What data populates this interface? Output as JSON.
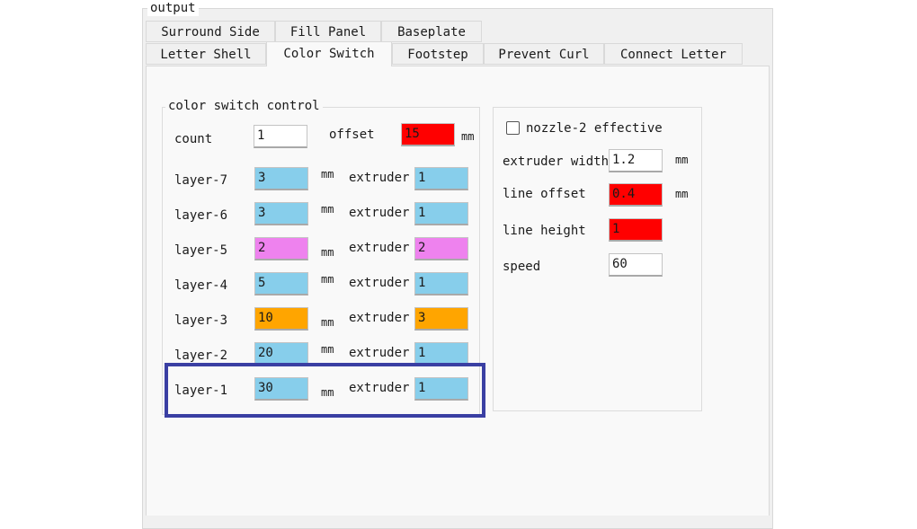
{
  "output_label": "output",
  "tabs_row1": [
    "Surround Side",
    "Fill Panel",
    "Baseplate"
  ],
  "tabs_row2": [
    "Letter Shell",
    "Color Switch",
    "Footstep",
    "Prevent Curl",
    "Connect Letter"
  ],
  "color_switch": {
    "legend": "color switch control",
    "count_label": "count",
    "count_value": "1",
    "offset_label": "offset",
    "offset_value": "15",
    "offset_unit": "mm",
    "layers": [
      {
        "label": "layer-7",
        "height": "3",
        "unit": "mm",
        "extruder_label": "extruder",
        "extruder": "1",
        "color": "#87ceeb"
      },
      {
        "label": "layer-6",
        "height": "3",
        "unit": "mm",
        "extruder_label": "extruder",
        "extruder": "1",
        "color": "#87ceeb"
      },
      {
        "label": "layer-5",
        "height": "2",
        "unit": "mm",
        "extruder_label": "extruder",
        "extruder": "2",
        "color": "#ee82ee"
      },
      {
        "label": "layer-4",
        "height": "5",
        "unit": "mm",
        "extruder_label": "extruder",
        "extruder": "1",
        "color": "#87ceeb"
      },
      {
        "label": "layer-3",
        "height": "10",
        "unit": "mm",
        "extruder_label": "extruder",
        "extruder": "3",
        "color": "#ffa500"
      },
      {
        "label": "layer-2",
        "height": "20",
        "unit": "mm",
        "extruder_label": "extruder",
        "extruder": "1",
        "color": "#87ceeb"
      },
      {
        "label": "layer-1",
        "height": "30",
        "unit": "mm",
        "extruder_label": "extruder",
        "extruder": "1",
        "color": "#87ceeb"
      }
    ]
  },
  "nozzle": {
    "checkbox_label": "nozzle-2 effective",
    "checked": false,
    "extruder_width_label": "extruder width",
    "extruder_width_value": "1.2",
    "extruder_width_unit": "mm",
    "line_offset_label": "line offset",
    "line_offset_value": "0.4",
    "line_offset_unit": "mm",
    "line_height_label": "line height",
    "line_height_value": "1",
    "speed_label": "speed",
    "speed_value": "60"
  },
  "colors": {
    "error_red": "#ff0000",
    "highlight_border": "#3a3fa3",
    "extruder_1": "#87ceeb",
    "extruder_2": "#ee82ee",
    "extruder_3": "#ffa500"
  }
}
